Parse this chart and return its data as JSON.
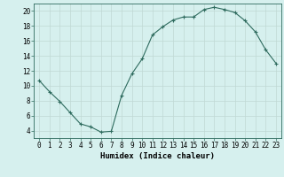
{
  "x": [
    0,
    1,
    2,
    3,
    4,
    5,
    6,
    7,
    8,
    9,
    10,
    11,
    12,
    13,
    14,
    15,
    16,
    17,
    18,
    19,
    20,
    21,
    22,
    23
  ],
  "y": [
    10.7,
    9.2,
    7.9,
    6.4,
    4.9,
    4.5,
    3.8,
    3.9,
    8.7,
    11.6,
    13.6,
    16.8,
    17.9,
    18.8,
    19.2,
    19.2,
    20.2,
    20.5,
    20.2,
    19.8,
    18.7,
    17.2,
    14.8,
    13.0
  ],
  "line_color": "#2e6b5e",
  "marker": "+",
  "marker_size": 3,
  "bg_color": "#d6f0ee",
  "grid_color": "#c0d8d4",
  "xlabel": "Humidex (Indice chaleur)",
  "xlim": [
    -0.5,
    23.5
  ],
  "ylim": [
    3,
    21
  ],
  "yticks": [
    4,
    6,
    8,
    10,
    12,
    14,
    16,
    18,
    20
  ],
  "xticks": [
    0,
    1,
    2,
    3,
    4,
    5,
    6,
    7,
    8,
    9,
    10,
    11,
    12,
    13,
    14,
    15,
    16,
    17,
    18,
    19,
    20,
    21,
    22,
    23
  ],
  "label_fontsize": 6.5,
  "tick_fontsize": 5.5
}
